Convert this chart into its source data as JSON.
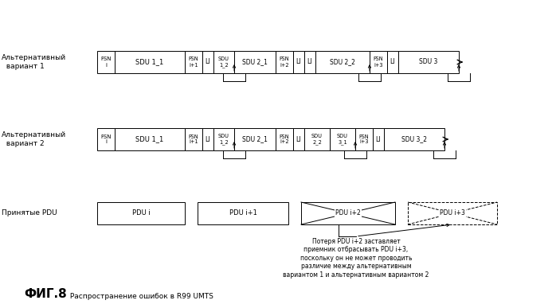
{
  "title": "ФИГ.8",
  "subtitle": " Распространение ошибок в R99 UMTS",
  "label_alt1": "Альтернативный\n  вариант 1",
  "label_alt2": "Альтернативный\n  вариант 2",
  "label_pdu": "Принятые PDU",
  "annotation": "Потеря PDU i+2 заставляет\nприемник отбрасывать PDU i+3,\nпоскольку он не может проводить\nразличие между альтернативным\nвариантом 1 и альтернативным вариантом 2",
  "bg_color": "#ffffff"
}
